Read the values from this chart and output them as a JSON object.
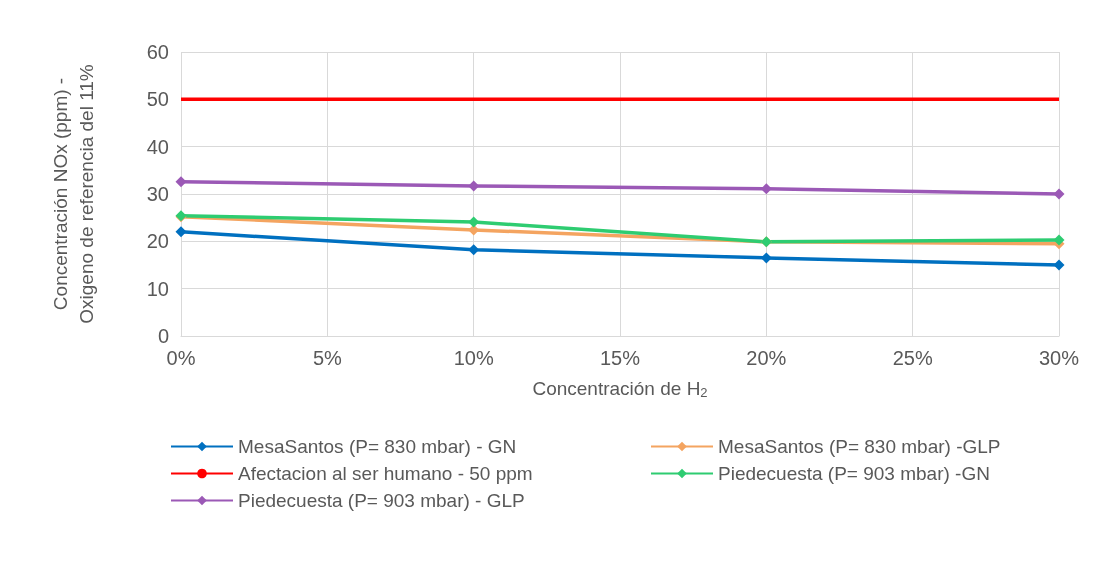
{
  "chart_data": {
    "type": "line",
    "xlabel": "Concentración de H$_{2}$",
    "ylabel": "Concentración NOx (ppm) - Oxigeno de referencia del 11%",
    "x": [
      0,
      10,
      20,
      30
    ],
    "xlim": [
      0,
      30
    ],
    "xticks": [
      {
        "value": 0,
        "label": "0%"
      },
      {
        "value": 5,
        "label": "5%"
      },
      {
        "value": 10,
        "label": "10%"
      },
      {
        "value": 15,
        "label": "15%"
      },
      {
        "value": 20,
        "label": "20%"
      },
      {
        "value": 25,
        "label": "25%"
      },
      {
        "value": 30,
        "label": "30%"
      }
    ],
    "ylim": [
      0,
      60
    ],
    "yticks": [
      0,
      10,
      20,
      30,
      40,
      50,
      60
    ],
    "grid": true,
    "legend": "bottom",
    "marker": "diamond",
    "line_style": "solid",
    "series": [
      {
        "name": "MesaSantos (P= 830 mbar) - GN",
        "color": "#0070c0",
        "values": [
          22.0,
          18.2,
          16.5,
          15.0
        ]
      },
      {
        "name": "MesaSantos (P= 830 mbar) -GLP",
        "color": "#f4a460",
        "values": [
          25.2,
          22.4,
          19.9,
          19.5
        ]
      },
      {
        "name": "Afectacion al ser humano - 50 ppm",
        "color": "#ff0000",
        "values": [
          50,
          50,
          50,
          50
        ],
        "marker": "none"
      },
      {
        "name": "Piedecuesta (P= 903 mbar) -GN",
        "color": "#2ecc71",
        "values": [
          25.4,
          24.1,
          19.9,
          20.3
        ]
      },
      {
        "name": "Piedecuesta (P= 903 mbar) - GLP",
        "color": "#9b59b6",
        "values": [
          32.6,
          31.7,
          31.1,
          30.0
        ]
      }
    ]
  }
}
